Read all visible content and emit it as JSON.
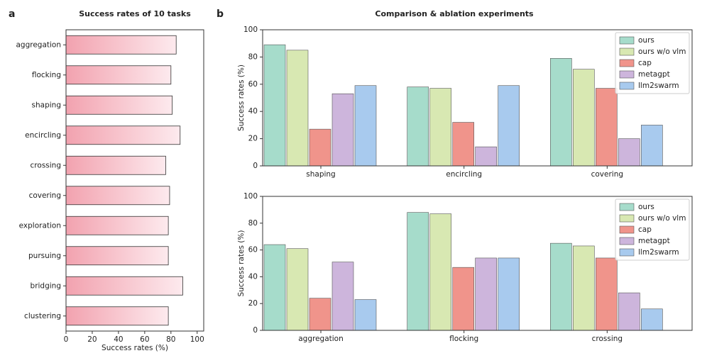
{
  "chart_data": [
    {
      "type": "bar",
      "orientation": "horizontal",
      "panel": "a",
      "title": "Success rates of 10 tasks",
      "xlabel": "Success rates (%)",
      "categories": [
        "aggregation",
        "flocking",
        "shaping",
        "encircling",
        "crossing",
        "covering",
        "exploration",
        "pursuing",
        "bridging",
        "clustering"
      ],
      "values": [
        84,
        80,
        81,
        87,
        76,
        79,
        78,
        78,
        89,
        78
      ],
      "color": [
        "#f2a2af",
        "#fdeaee"
      ],
      "xlim": [
        0,
        105
      ],
      "xticks": [
        0,
        20,
        40,
        60,
        80,
        100
      ]
    },
    {
      "type": "bar",
      "panel": "b",
      "title": "Comparison & ablation experiments",
      "ylabel": "Success rates (%)",
      "categories": [
        "shaping",
        "encircling",
        "covering"
      ],
      "series": [
        {
          "name": "ours",
          "color": "#a6dccb",
          "values": [
            89,
            58,
            79
          ]
        },
        {
          "name": "ours w/o vlm",
          "color": "#d8e8b2",
          "values": [
            85,
            57,
            71
          ]
        },
        {
          "name": "cap",
          "color": "#f0948b",
          "values": [
            27,
            32,
            57
          ]
        },
        {
          "name": "metagpt",
          "color": "#cdb5dc",
          "values": [
            53,
            14,
            20
          ]
        },
        {
          "name": "llm2swarm",
          "color": "#a8caee",
          "values": [
            59,
            59,
            30
          ]
        }
      ],
      "ylim": [
        0,
        100
      ],
      "yticks": [
        0,
        20,
        40,
        60,
        80,
        100
      ],
      "legend": "upper right"
    },
    {
      "type": "bar",
      "ylabel": "Success rates (%)",
      "categories": [
        "aggregation",
        "flocking",
        "crossing"
      ],
      "series": [
        {
          "name": "ours",
          "color": "#a6dccb",
          "values": [
            64,
            88,
            65
          ]
        },
        {
          "name": "ours w/o vlm",
          "color": "#d8e8b2",
          "values": [
            61,
            87,
            63
          ]
        },
        {
          "name": "cap",
          "color": "#f0948b",
          "values": [
            24,
            47,
            54
          ]
        },
        {
          "name": "metagpt",
          "color": "#cdb5dc",
          "values": [
            51,
            54,
            28
          ]
        },
        {
          "name": "llm2swarm",
          "color": "#a8caee",
          "values": [
            23,
            54,
            16
          ]
        }
      ],
      "ylim": [
        0,
        100
      ],
      "yticks": [
        0,
        20,
        40,
        60,
        80,
        100
      ],
      "legend": "upper right"
    }
  ]
}
